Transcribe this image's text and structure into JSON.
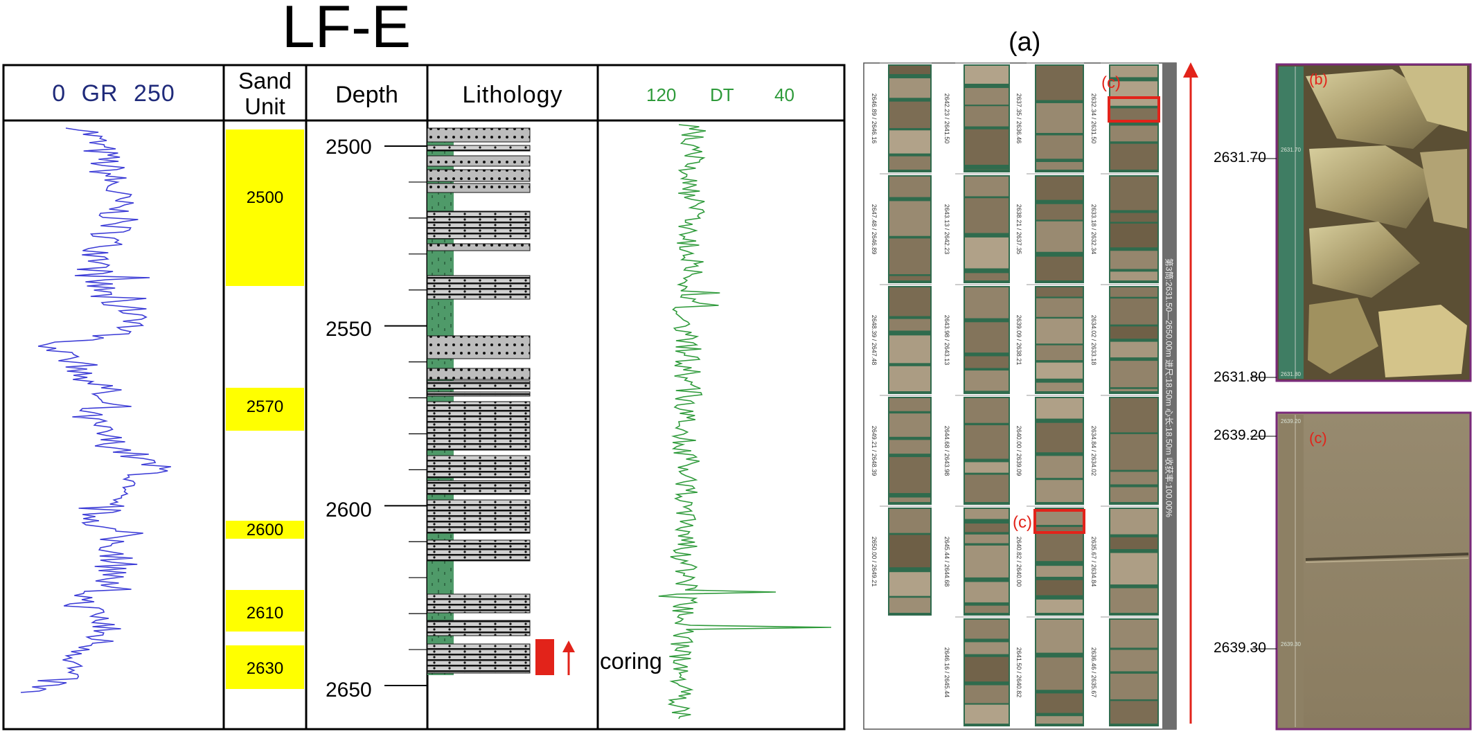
{
  "well_log": {
    "title": "LF-E",
    "columns": {
      "gr": {
        "min_label": "0",
        "name": "GR",
        "max_label": "250"
      },
      "sand_unit": {
        "line1": "Sand",
        "line2": "Unit"
      },
      "depth": {
        "label": "Depth"
      },
      "lithology": {
        "label": "Lithology"
      },
      "dt": {
        "min_label": "120",
        "name": "DT",
        "max_label": "40"
      }
    },
    "depth_ticks": [
      "2500",
      "2550",
      "2600",
      "2650"
    ],
    "sand_units": [
      "2500",
      "2570",
      "2600",
      "2610",
      "2630"
    ],
    "coring_label": "coring",
    "colors": {
      "gr_curve": "#3b3bd6",
      "dt_curve": "#2e9a3a",
      "sand_fill": "#ffff00",
      "coring": "#e2231a"
    }
  },
  "core_photos": {
    "panel_label": "(a)",
    "box_labels": [
      "(c)",
      "(c)"
    ],
    "column_depth_labels": [
      [
        "2646.89 / 2646.16",
        "2647.48 / 2646.89",
        "2648.39 / 2647.48",
        "2649.21 / 2648.39",
        "2650.00 / 2649.21"
      ],
      [
        "2642.23 / 2641.50",
        "2643.13 / 2642.23",
        "2643.98 / 2643.13",
        "2644.68 / 2643.98",
        "2645.44 / 2644.68",
        "2646.16 / 2645.44"
      ],
      [
        "2637.35 / 2636.46",
        "2638.21 / 2637.35",
        "2639.09 / 2638.21",
        "2640.00 / 2639.09",
        "2640.82 / 2640.00",
        "2641.50 / 2640.82"
      ],
      [
        "2632.34 / 2631.50",
        "2633.18 / 2632.34",
        "2634.02 / 2633.18",
        "2634.84 / 2634.02",
        "2635.67 / 2634.84",
        "2636.46 / 2635.67"
      ]
    ],
    "side_strip_text": "第3筒:2631.50—2650.00m  进尺:18.50m  心长:18.50m  收获率:100.00%"
  },
  "detail_b": {
    "label": "(b)",
    "top_depth": "2631.70",
    "bottom_depth": "2631.80",
    "scale_top": "2631.70",
    "scale_bottom": "2631.80"
  },
  "detail_c": {
    "label": "(c)",
    "top_depth": "2639.20",
    "bottom_depth": "2639.30",
    "scale_top": "2639.20",
    "scale_bottom": "2639.30"
  }
}
